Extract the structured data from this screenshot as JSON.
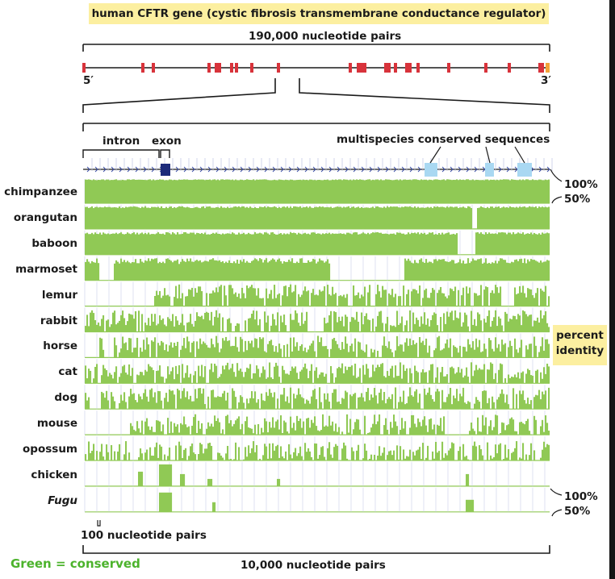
{
  "title": "human CFTR gene (cystic fibrosis transmembrane conductance regulator)",
  "gene_length_label": "190,000 nucleotide pairs",
  "five_prime": "5′",
  "three_prime": "3′",
  "intron_label": "intron",
  "exon_label": "exon",
  "conserved_label": "multispecies conserved sequences",
  "pct_top_100": "100%",
  "pct_top_50": "50%",
  "pct_bot_100": "100%",
  "pct_bot_50": "50%",
  "percent_identity_line1": "percent",
  "percent_identity_line2": "identity",
  "scale_100_label": "100 nucleotide pairs",
  "scale_10000_label": "10,000 nucleotide pairs",
  "legend_label": "Green = conserved",
  "colors": {
    "conserved": "#90c955",
    "exon": "#d8333b",
    "exon_end": "#f2a43a",
    "exon_zoom": "#1c2a7a",
    "cns": "#a9d8f2",
    "title_bg": "#fcefa0"
  },
  "species": [
    {
      "name": "chimpanzee",
      "italic": false
    },
    {
      "name": "orangutan",
      "italic": false
    },
    {
      "name": "baboon",
      "italic": false
    },
    {
      "name": "marmoset",
      "italic": false
    },
    {
      "name": "lemur",
      "italic": false
    },
    {
      "name": "rabbit",
      "italic": false
    },
    {
      "name": "horse",
      "italic": false
    },
    {
      "name": "cat",
      "italic": false
    },
    {
      "name": "dog",
      "italic": false
    },
    {
      "name": "mouse",
      "italic": false
    },
    {
      "name": "opossum",
      "italic": false
    },
    {
      "name": "chicken",
      "italic": false
    },
    {
      "name": "Fugu",
      "italic": true
    }
  ]
}
